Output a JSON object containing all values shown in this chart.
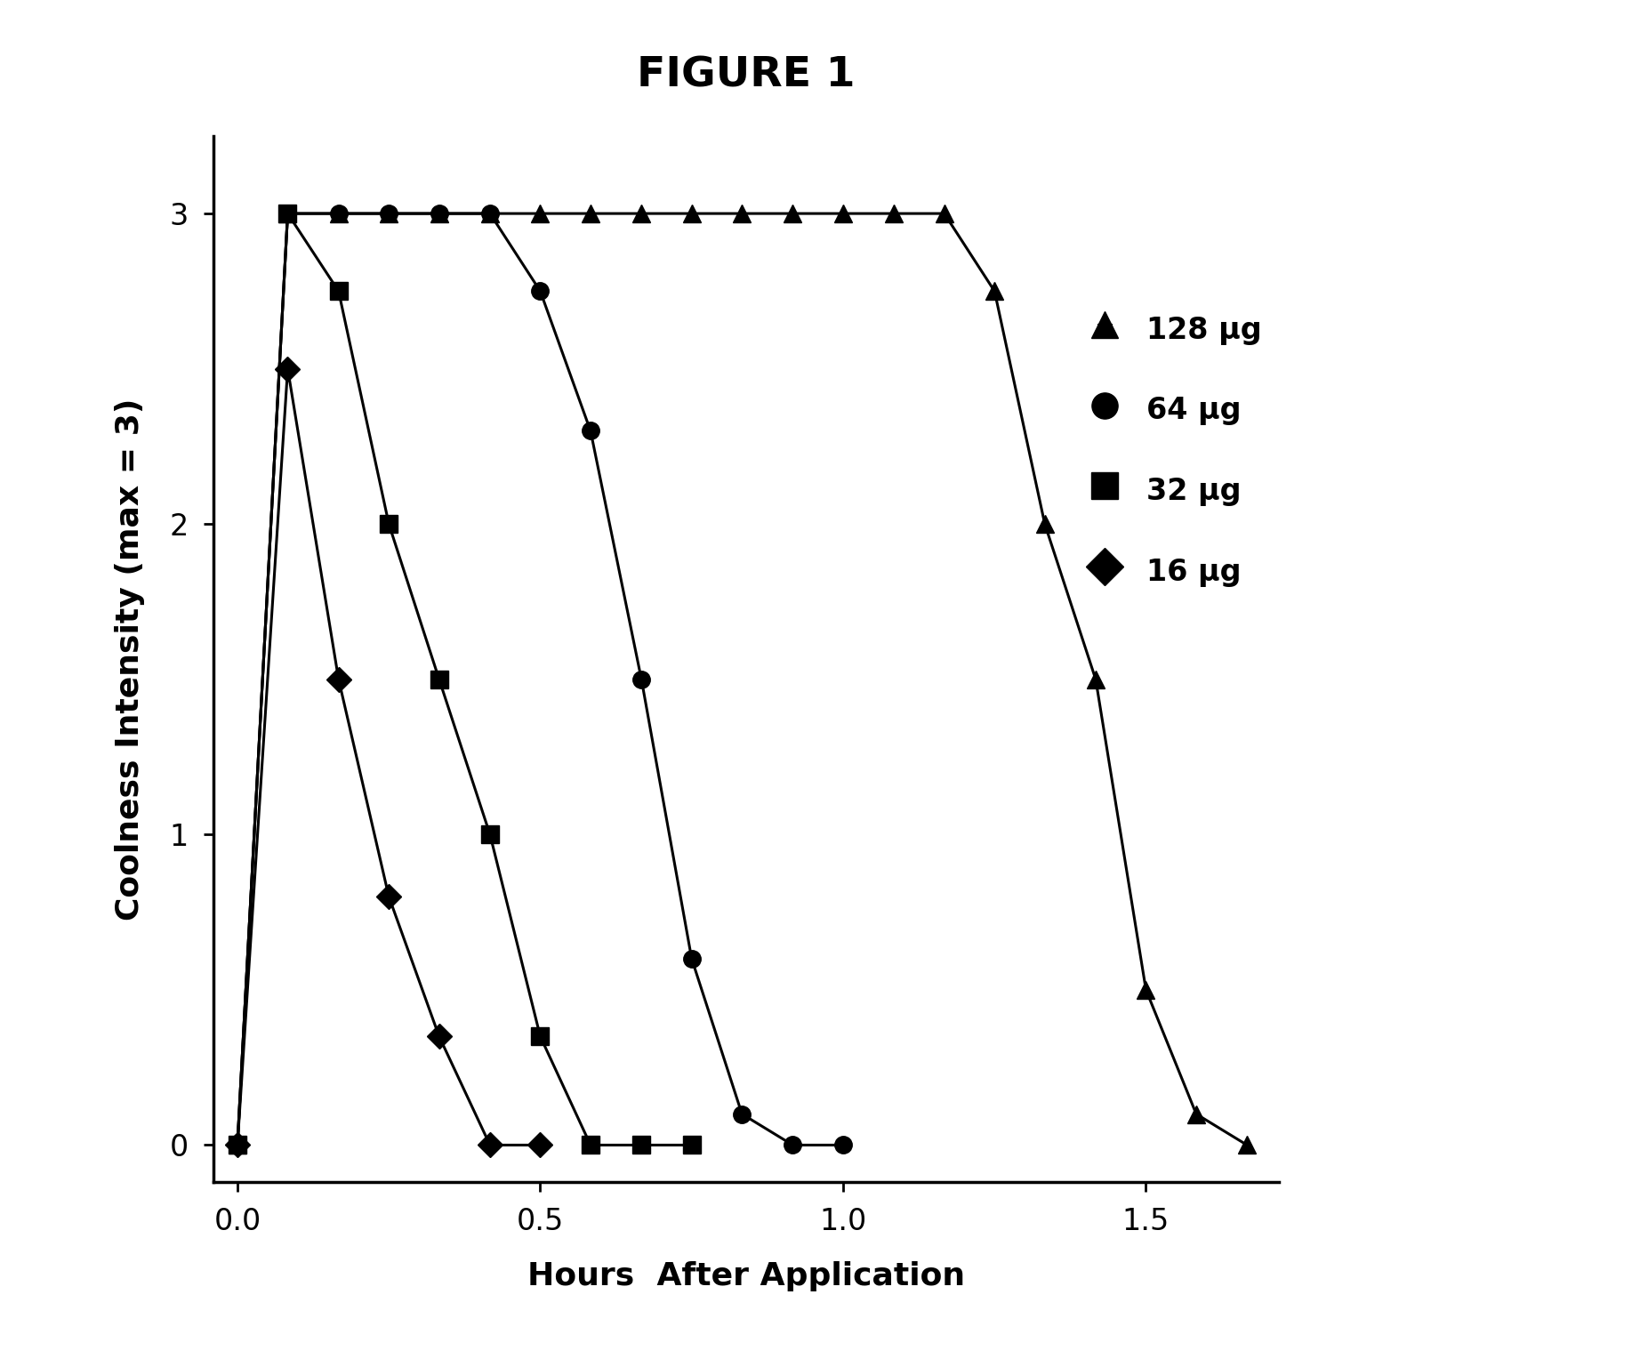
{
  "title": "FIGURE 1",
  "xlabel": "Hours  After Application",
  "ylabel": "Coolness Intensity (max = 3)",
  "xlim": [
    -0.04,
    1.72
  ],
  "ylim": [
    -0.12,
    3.25
  ],
  "xticks": [
    0.0,
    0.5,
    1.0,
    1.5
  ],
  "yticks": [
    0,
    1,
    2,
    3
  ],
  "background_color": "#ffffff",
  "series": [
    {
      "label": "128 μg",
      "marker": "^",
      "x": [
        0.0,
        0.083,
        0.167,
        0.25,
        0.333,
        0.417,
        0.5,
        0.583,
        0.667,
        0.75,
        0.833,
        0.917,
        1.0,
        1.083,
        1.167,
        1.25,
        1.333,
        1.417,
        1.5,
        1.583,
        1.667
      ],
      "y": [
        0.0,
        3.0,
        3.0,
        3.0,
        3.0,
        3.0,
        3.0,
        3.0,
        3.0,
        3.0,
        3.0,
        3.0,
        3.0,
        3.0,
        3.0,
        2.75,
        2.0,
        1.5,
        0.5,
        0.1,
        0.0
      ]
    },
    {
      "label": "64 μg",
      "marker": "o",
      "x": [
        0.0,
        0.083,
        0.167,
        0.25,
        0.333,
        0.417,
        0.5,
        0.583,
        0.667,
        0.75,
        0.833,
        0.917,
        1.0
      ],
      "y": [
        0.0,
        3.0,
        3.0,
        3.0,
        3.0,
        3.0,
        2.75,
        2.3,
        1.5,
        0.6,
        0.1,
        0.0,
        0.0
      ]
    },
    {
      "label": "32 μg",
      "marker": "s",
      "x": [
        0.0,
        0.083,
        0.167,
        0.25,
        0.333,
        0.417,
        0.5,
        0.583,
        0.667,
        0.75
      ],
      "y": [
        0.0,
        3.0,
        2.75,
        2.0,
        1.5,
        1.0,
        0.35,
        0.0,
        0.0,
        0.0
      ]
    },
    {
      "label": "16 μg",
      "marker": "D",
      "x": [
        0.0,
        0.083,
        0.167,
        0.25,
        0.333,
        0.417,
        0.5
      ],
      "y": [
        0.0,
        2.5,
        1.5,
        0.8,
        0.35,
        0.0,
        0.0
      ]
    }
  ],
  "line_color": "#000000",
  "marker_size": 14,
  "line_width": 2.2,
  "title_fontsize": 34,
  "label_fontsize": 26,
  "tick_fontsize": 24,
  "legend_fontsize": 24,
  "legend_marker_size": 18
}
